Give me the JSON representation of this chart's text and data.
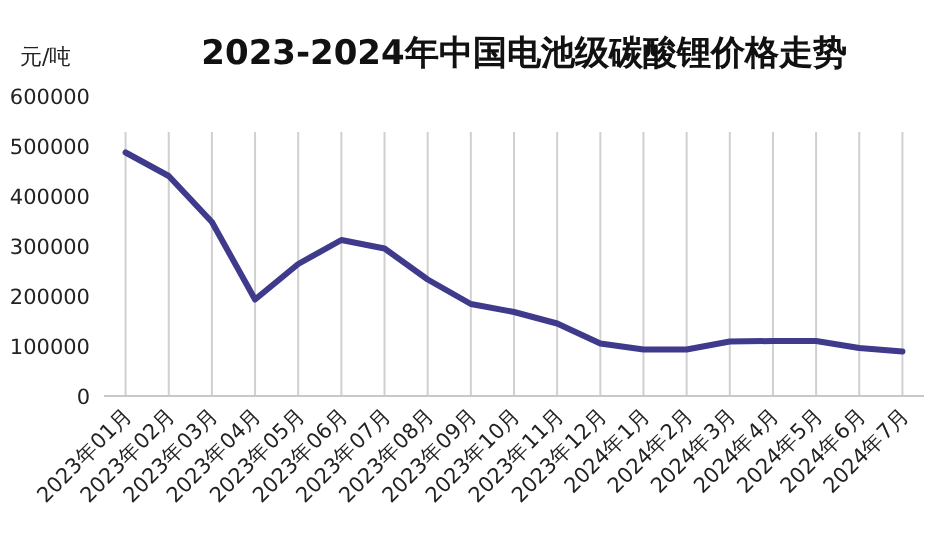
{
  "chart_data": {
    "type": "line",
    "title": "2023-2024年中国电池级碳酸锂价格走势",
    "ylabel": "元/吨",
    "categories": [
      "2023年01月",
      "2023年02月",
      "2023年03月",
      "2023年04月",
      "2023年05月",
      "2023年06月",
      "2023年07月",
      "2023年08月",
      "2023年09月",
      "2023年10月",
      "2023年11月",
      "2023年12月",
      "2024年1月",
      "2024年2月",
      "2024年3月",
      "2024年4月",
      "2024年5月",
      "2024年6月",
      "2024年7月"
    ],
    "series": [
      {
        "color": "#3f3a8c",
        "values": [
          487000,
          440000,
          348000,
          193000,
          264000,
          312000,
          295000,
          233000,
          184000,
          168000,
          145000,
          105000,
          93000,
          93000,
          109000,
          110000,
          110000,
          96000,
          89000
        ]
      }
    ],
    "ylim": [
      0,
      600000
    ],
    "yticks": [
      0,
      100000,
      200000,
      300000,
      400000,
      500000,
      600000
    ],
    "grid": "x",
    "marker": "none",
    "line_style": "solid"
  }
}
